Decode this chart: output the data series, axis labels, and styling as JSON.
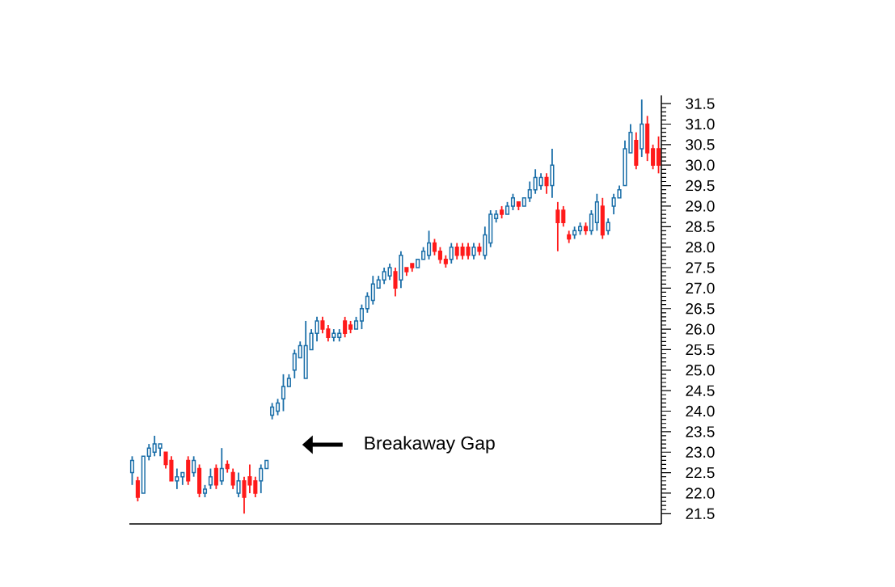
{
  "chart_data": {
    "type": "candlestick",
    "categories": [
      null,
      null,
      null,
      null,
      null,
      null,
      null,
      null,
      null,
      null,
      null,
      null,
      null,
      null,
      null,
      null,
      null,
      null,
      null,
      null,
      null,
      null,
      null,
      null,
      null,
      null,
      null,
      null,
      null,
      null,
      null,
      null,
      null,
      null,
      null,
      null,
      null,
      null,
      null,
      null,
      null,
      null,
      null,
      null,
      null,
      null,
      null,
      null,
      null,
      null,
      null,
      null,
      null,
      null,
      null,
      null,
      null,
      null,
      null,
      null,
      null,
      null,
      null,
      null,
      null,
      null,
      null,
      null,
      null,
      null,
      null,
      null,
      null,
      null,
      null,
      null,
      null,
      null,
      null,
      null,
      null,
      null,
      null,
      null,
      null,
      null,
      null,
      null,
      null,
      null,
      null,
      null,
      null,
      null,
      null
    ],
    "ohlc": [
      [
        22.5,
        22.9,
        22.2,
        22.8
      ],
      [
        22.3,
        22.4,
        21.8,
        21.9
      ],
      [
        22.0,
        22.9,
        22.0,
        22.9
      ],
      [
        22.9,
        23.2,
        22.8,
        23.1
      ],
      [
        23.0,
        23.4,
        22.9,
        23.2
      ],
      [
        23.1,
        23.2,
        22.9,
        23.2
      ],
      [
        23.0,
        23.0,
        22.6,
        22.7
      ],
      [
        22.8,
        22.9,
        22.3,
        22.3
      ],
      [
        22.3,
        22.6,
        22.1,
        22.4
      ],
      [
        22.4,
        22.5,
        22.2,
        22.5
      ],
      [
        22.8,
        22.9,
        22.2,
        22.3
      ],
      [
        22.5,
        22.9,
        22.4,
        22.8
      ],
      [
        22.6,
        22.7,
        21.9,
        22.0
      ],
      [
        22.0,
        22.2,
        21.9,
        22.1
      ],
      [
        22.2,
        22.6,
        22.1,
        22.4
      ],
      [
        22.6,
        22.7,
        22.1,
        22.2
      ],
      [
        22.3,
        23.1,
        22.2,
        22.6
      ],
      [
        22.7,
        22.8,
        22.5,
        22.6
      ],
      [
        22.5,
        22.6,
        22.1,
        22.2
      ],
      [
        22.0,
        22.5,
        21.9,
        22.3
      ],
      [
        22.3,
        22.4,
        21.5,
        21.9
      ],
      [
        22.4,
        22.7,
        22.0,
        22.2
      ],
      [
        22.3,
        22.4,
        21.9,
        22.0
      ],
      [
        22.3,
        22.7,
        22.0,
        22.6
      ],
      [
        22.6,
        22.8,
        22.6,
        22.8
      ],
      [
        23.9,
        24.2,
        23.8,
        24.1
      ],
      [
        24.0,
        24.3,
        23.9,
        24.2
      ],
      [
        24.3,
        24.9,
        24.0,
        24.6
      ],
      [
        24.6,
        24.9,
        24.6,
        24.8
      ],
      [
        25.0,
        25.5,
        24.8,
        25.4
      ],
      [
        25.3,
        25.7,
        25.3,
        25.6
      ],
      [
        24.8,
        26.2,
        24.8,
        25.6
      ],
      [
        25.5,
        26.0,
        25.5,
        25.9
      ],
      [
        25.9,
        26.3,
        25.7,
        26.2
      ],
      [
        26.2,
        26.3,
        25.9,
        26.0
      ],
      [
        26.0,
        26.1,
        25.7,
        25.8
      ],
      [
        25.8,
        26.0,
        25.7,
        25.9
      ],
      [
        25.8,
        26.0,
        25.7,
        25.9
      ],
      [
        26.2,
        26.3,
        25.8,
        25.9
      ],
      [
        26.1,
        26.2,
        25.9,
        26.0
      ],
      [
        26.0,
        26.3,
        26.0,
        26.2
      ],
      [
        26.2,
        26.6,
        26.0,
        26.5
      ],
      [
        26.5,
        26.9,
        26.4,
        26.8
      ],
      [
        26.7,
        27.3,
        26.6,
        27.1
      ],
      [
        27.0,
        27.3,
        27.0,
        27.2
      ],
      [
        27.2,
        27.5,
        27.1,
        27.4
      ],
      [
        27.3,
        27.6,
        27.2,
        27.5
      ],
      [
        27.4,
        27.5,
        26.8,
        27.0
      ],
      [
        27.2,
        27.9,
        27.0,
        27.8
      ],
      [
        27.5,
        27.5,
        27.3,
        27.4
      ],
      [
        27.6,
        27.6,
        27.4,
        27.5
      ],
      [
        27.5,
        27.7,
        27.5,
        27.7
      ],
      [
        27.7,
        28.0,
        27.7,
        27.9
      ],
      [
        27.8,
        28.4,
        27.7,
        28.1
      ],
      [
        28.1,
        28.2,
        27.8,
        27.9
      ],
      [
        27.9,
        28.0,
        27.6,
        27.7
      ],
      [
        27.7,
        27.8,
        27.5,
        27.6
      ],
      [
        27.7,
        28.1,
        27.6,
        28.0
      ],
      [
        28.0,
        28.1,
        27.7,
        27.8
      ],
      [
        28.0,
        28.1,
        27.7,
        27.8
      ],
      [
        28.0,
        28.1,
        27.7,
        27.8
      ],
      [
        27.8,
        28.1,
        27.7,
        28.0
      ],
      [
        28.0,
        28.1,
        27.8,
        27.9
      ],
      [
        27.8,
        28.5,
        27.7,
        28.3
      ],
      [
        28.1,
        28.9,
        28.0,
        28.8
      ],
      [
        28.7,
        28.9,
        28.6,
        28.8
      ],
      [
        28.9,
        29.0,
        28.7,
        28.8
      ],
      [
        28.8,
        29.1,
        28.8,
        29.0
      ],
      [
        29.0,
        29.3,
        28.9,
        29.2
      ],
      [
        29.1,
        29.1,
        28.9,
        29.0
      ],
      [
        29.0,
        29.2,
        29.0,
        29.2
      ],
      [
        29.2,
        29.6,
        29.1,
        29.4
      ],
      [
        29.4,
        29.9,
        29.3,
        29.7
      ],
      [
        29.5,
        29.8,
        29.4,
        29.7
      ],
      [
        29.7,
        29.8,
        29.3,
        29.5
      ],
      [
        29.5,
        30.4,
        29.2,
        30.0
      ],
      [
        28.9,
        29.1,
        27.9,
        28.6
      ],
      [
        28.9,
        29.0,
        28.5,
        28.6
      ],
      [
        28.3,
        28.4,
        28.1,
        28.2
      ],
      [
        28.3,
        28.5,
        28.2,
        28.4
      ],
      [
        28.4,
        28.6,
        28.3,
        28.5
      ],
      [
        28.5,
        28.6,
        28.3,
        28.4
      ],
      [
        28.4,
        28.9,
        28.3,
        28.8
      ],
      [
        28.6,
        29.3,
        28.4,
        29.1
      ],
      [
        29.0,
        29.2,
        28.2,
        28.3
      ],
      [
        28.4,
        28.7,
        28.3,
        28.6
      ],
      [
        29.0,
        29.3,
        28.8,
        29.2
      ],
      [
        29.2,
        29.5,
        29.2,
        29.4
      ],
      [
        29.5,
        30.6,
        29.5,
        30.4
      ],
      [
        30.3,
        31.0,
        30.3,
        30.8
      ],
      [
        30.6,
        30.8,
        29.9,
        30.0
      ],
      [
        30.4,
        31.6,
        30.2,
        31.0
      ],
      [
        31.0,
        31.2,
        30.1,
        30.3
      ],
      [
        30.4,
        30.5,
        29.9,
        30.0
      ],
      [
        30.4,
        30.7,
        29.8,
        30.0
      ]
    ],
    "colors": [
      "#1a6ea8",
      "#ff1a1a",
      "#1a6ea8",
      "#1a6ea8",
      "#1a6ea8",
      "#1a6ea8",
      "#ff1a1a",
      "#ff1a1a",
      "#1a6ea8",
      "#1a6ea8",
      "#ff1a1a",
      "#1a6ea8",
      "#ff1a1a",
      "#1a6ea8",
      "#1a6ea8",
      "#ff1a1a",
      "#1a6ea8",
      "#ff1a1a",
      "#ff1a1a",
      "#1a6ea8",
      "#ff1a1a",
      "#ff1a1a",
      "#ff1a1a",
      "#1a6ea8",
      "#1a6ea8",
      "#1a6ea8",
      "#1a6ea8",
      "#1a6ea8",
      "#1a6ea8",
      "#1a6ea8",
      "#1a6ea8",
      "#1a6ea8",
      "#1a6ea8",
      "#1a6ea8",
      "#ff1a1a",
      "#ff1a1a",
      "#1a6ea8",
      "#1a6ea8",
      "#ff1a1a",
      "#ff1a1a",
      "#1a6ea8",
      "#1a6ea8",
      "#1a6ea8",
      "#1a6ea8",
      "#1a6ea8",
      "#1a6ea8",
      "#1a6ea8",
      "#ff1a1a",
      "#1a6ea8",
      "#ff1a1a",
      "#ff1a1a",
      "#1a6ea8",
      "#1a6ea8",
      "#1a6ea8",
      "#ff1a1a",
      "#ff1a1a",
      "#ff1a1a",
      "#1a6ea8",
      "#ff1a1a",
      "#ff1a1a",
      "#ff1a1a",
      "#1a6ea8",
      "#ff1a1a",
      "#1a6ea8",
      "#1a6ea8",
      "#1a6ea8",
      "#ff1a1a",
      "#1a6ea8",
      "#1a6ea8",
      "#ff1a1a",
      "#1a6ea8",
      "#1a6ea8",
      "#1a6ea8",
      "#1a6ea8",
      "#ff1a1a",
      "#1a6ea8",
      "#ff1a1a",
      "#ff1a1a",
      "#ff1a1a",
      "#1a6ea8",
      "#1a6ea8",
      "#ff1a1a",
      "#1a6ea8",
      "#1a6ea8",
      "#ff1a1a",
      "#1a6ea8",
      "#1a6ea8",
      "#1a6ea8",
      "#1a6ea8",
      "#1a6ea8",
      "#ff1a1a",
      "#1a6ea8",
      "#ff1a1a",
      "#ff1a1a",
      "#ff1a1a"
    ],
    "ylim": [
      21.25,
      31.7
    ],
    "yticks": [
      21.5,
      {
        "value": 22,
        "label": "22.0"
      },
      22.5,
      {
        "value": 23,
        "label": "23.0"
      },
      23.5,
      {
        "value": 24,
        "label": "24.0"
      },
      24.5,
      {
        "value": 25,
        "label": "25.0"
      },
      25.5,
      {
        "value": 26,
        "label": "26.0"
      },
      26.5,
      {
        "value": 27,
        "label": "27.0"
      },
      27.5,
      {
        "value": 28,
        "label": "28.0"
      },
      28.5,
      {
        "value": 29,
        "label": "29.0"
      },
      29.5,
      {
        "value": 30,
        "label": "30.0"
      },
      30.5,
      {
        "value": 31,
        "label": "31.0"
      },
      31.5
    ],
    "annotations": [
      "Breakaway Gap"
    ]
  }
}
